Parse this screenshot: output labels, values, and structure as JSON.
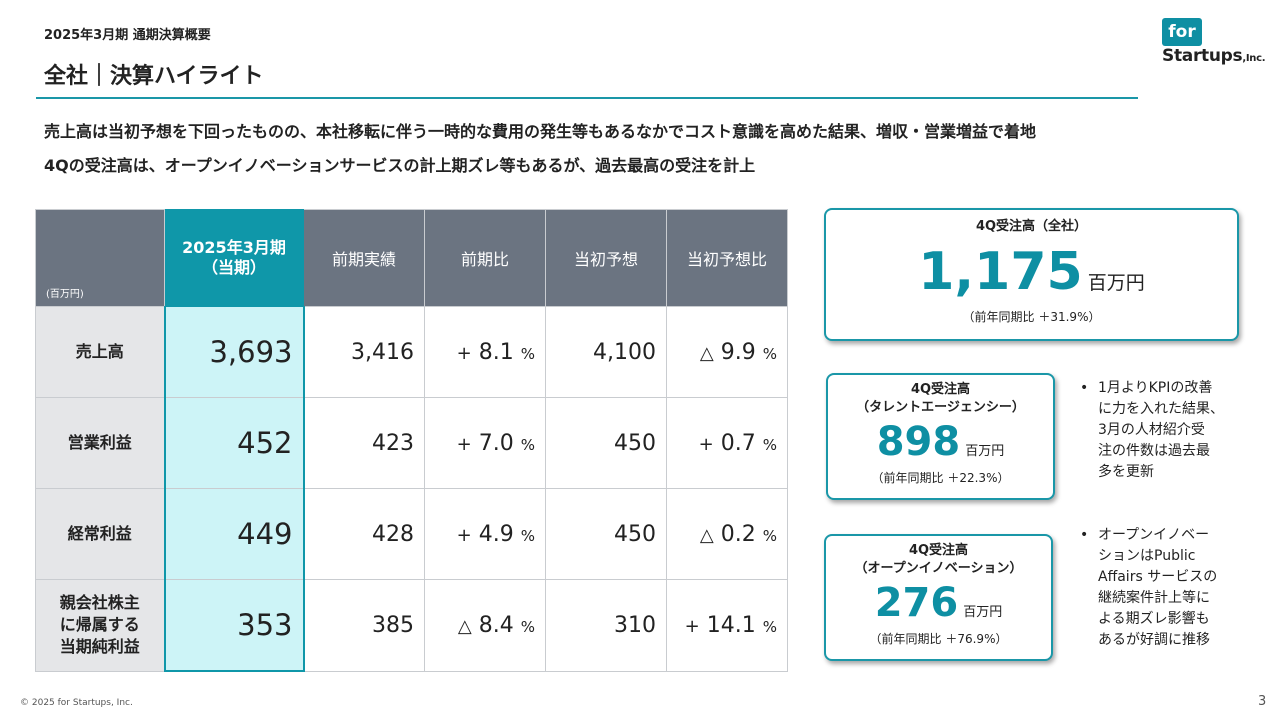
{
  "header": {
    "subtitle": "2025年3月期 通期決算概要",
    "title": "全社｜決算ハイライト",
    "logo": {
      "top": "for",
      "bottom": "Startups",
      "suffix": ",Inc."
    }
  },
  "lead": [
    "売上高は当初予想を下回ったものの、本社移転に伴う一時的な費用の発生等もあるなかでコスト意識を高めた結果、増収・営業増益で着地",
    "4Qの受注高は、オープンイノベーションサービスの計上期ズレ等もあるが、過去最高の受注を計上"
  ],
  "table": {
    "unit_label": "(百万円)",
    "current_col": [
      "2025年3月期",
      "（当期）"
    ],
    "columns": [
      "前期実績",
      "前期比",
      "当初予想",
      "当初予想比"
    ],
    "rows": [
      {
        "label": [
          "売上高"
        ],
        "current": "3,693",
        "prev": "3,416",
        "yoy_sign": "+",
        "yoy": "8.1",
        "forecast": "4,100",
        "vs_sign": "△",
        "vs": "9.9"
      },
      {
        "label": [
          "営業利益"
        ],
        "current": "452",
        "prev": "423",
        "yoy_sign": "+",
        "yoy": "7.0",
        "forecast": "450",
        "vs_sign": "+",
        "vs": "0.7"
      },
      {
        "label": [
          "経常利益"
        ],
        "current": "449",
        "prev": "428",
        "yoy_sign": "+",
        "yoy": "4.9",
        "forecast": "450",
        "vs_sign": "△",
        "vs": "0.2"
      },
      {
        "label": [
          "親会社株主",
          "に帰属する",
          "当期純利益"
        ],
        "current": "353",
        "prev": "385",
        "yoy_sign": "△",
        "yoy": "8.4",
        "forecast": "310",
        "vs_sign": "+",
        "vs": "14.1"
      }
    ],
    "percent": "%"
  },
  "cards": {
    "total": {
      "label": "4Q受注高（全社）",
      "value": "1,175",
      "unit": "百万円",
      "caption": "（前年同期比 ＋31.9%）"
    },
    "agency": {
      "label1": "4Q受注高",
      "label2": "（タレントエージェンシー）",
      "value": "898",
      "unit": "百万円",
      "caption": "（前年同期比 ＋22.3%）"
    },
    "innovation": {
      "label1": "4Q受注高",
      "label2": "（オープンイノベーション）",
      "value": "276",
      "unit": "百万円",
      "caption": "（前年同期比 ＋76.9%）"
    }
  },
  "notes": {
    "agency": [
      "1月よりKPIの改善",
      "に力を入れた結果、",
      "3月の人材紹介受",
      "注の件数は過去最",
      "多を更新"
    ],
    "innovation": [
      "オープンイノベー",
      "ションはPublic",
      "Affairs サービスの",
      "継続案件計上等に",
      "よる期ズレ影響も",
      "あるが好調に推移"
    ],
    "bullet": "•"
  },
  "footer": {
    "copyright": "© 2025 for Startups, Inc.",
    "page": "3"
  },
  "colors": {
    "accent": "#0f97a9",
    "header_gray": "#6b7481",
    "current_bg": "#cdf4f7",
    "row_label_bg": "#e5e6e8"
  }
}
